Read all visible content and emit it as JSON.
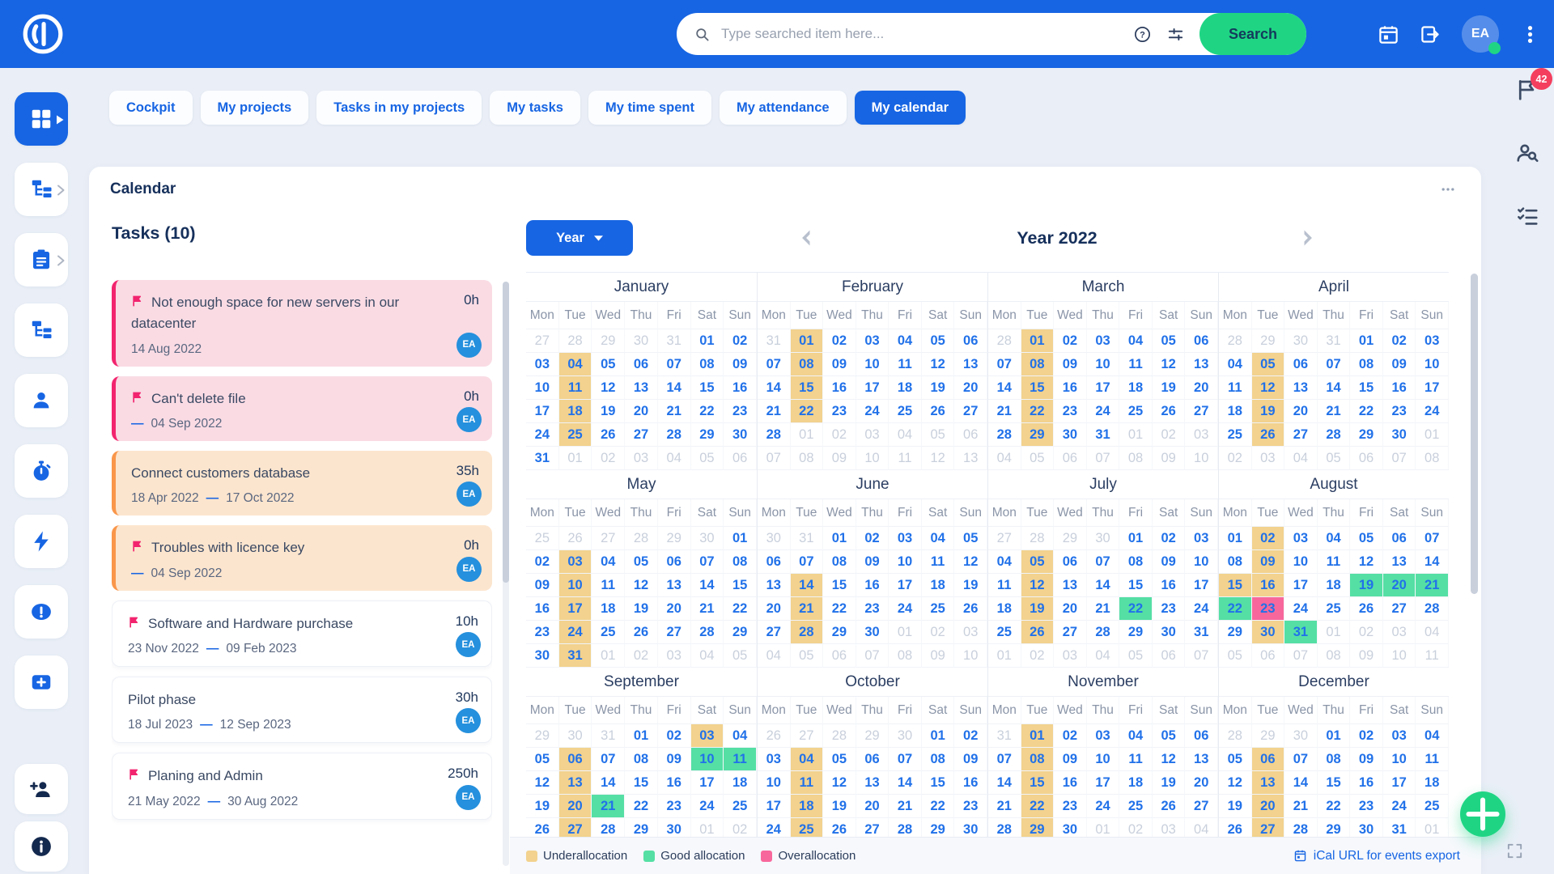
{
  "topbar": {
    "search_placeholder": "Type searched item here...",
    "search_button": "Search",
    "avatar_initials": "EA"
  },
  "tabs": [
    {
      "label": "Cockpit",
      "active": false
    },
    {
      "label": "My projects",
      "active": false
    },
    {
      "label": "Tasks in my projects",
      "active": false
    },
    {
      "label": "My tasks",
      "active": false
    },
    {
      "label": "My time spent",
      "active": false
    },
    {
      "label": "My attendance",
      "active": false
    },
    {
      "label": "My calendar",
      "active": true
    }
  ],
  "sidebar": {
    "items": [
      {
        "icon": "dashboard",
        "active": true
      },
      {
        "icon": "project-tree",
        "chevron": true
      },
      {
        "icon": "clipboard",
        "chevron": true
      },
      {
        "icon": "org-tree"
      },
      {
        "icon": "user"
      },
      {
        "icon": "stopwatch"
      },
      {
        "icon": "bolt"
      },
      {
        "icon": "alert"
      },
      {
        "icon": "plus-square"
      }
    ],
    "bottom": [
      {
        "icon": "user-add"
      },
      {
        "icon": "info"
      }
    ]
  },
  "rail": {
    "items": [
      {
        "icon": "flag",
        "badge": "42"
      },
      {
        "icon": "user-search"
      },
      {
        "icon": "checklist"
      }
    ]
  },
  "panel": {
    "title": "Calendar"
  },
  "tasks_panel": {
    "title": "Tasks (10)",
    "items": [
      {
        "title": "Not enough space for new servers in our datacenter",
        "flag": true,
        "style": "pink",
        "start": "14 Aug 2022",
        "end": "",
        "hours": "0h",
        "assignee": "EA"
      },
      {
        "title": "Can't delete file",
        "flag": true,
        "style": "pink",
        "start": "",
        "end": "04 Sep 2022",
        "hours": "0h",
        "assignee": "EA"
      },
      {
        "title": "Connect customers database",
        "flag": false,
        "style": "orange",
        "start": "18 Apr 2022",
        "end": "17 Oct 2022",
        "hours": "35h",
        "assignee": "EA"
      },
      {
        "title": "Troubles with licence key",
        "flag": true,
        "style": "orange",
        "start": "",
        "end": "04 Sep 2022",
        "hours": "0h",
        "assignee": "EA"
      },
      {
        "title": "Software and Hardware purchase",
        "flag": true,
        "style": "white",
        "start": "23 Nov 2022",
        "end": "09 Feb 2023",
        "hours": "10h",
        "assignee": "EA"
      },
      {
        "title": "Pilot phase",
        "flag": false,
        "style": "white",
        "start": "18 Jul 2023",
        "end": "12 Sep 2023",
        "hours": "30h",
        "assignee": "EA"
      },
      {
        "title": "Planing and Admin",
        "flag": true,
        "style": "white",
        "start": "21 May 2022",
        "end": "30 Aug 2022",
        "hours": "250h",
        "assignee": "EA"
      }
    ]
  },
  "calendar": {
    "selector_label": "Year",
    "title": "Year 2022",
    "dow": [
      "Mon",
      "Tue",
      "Wed",
      "Thu",
      "Fri",
      "Sat",
      "Sun"
    ],
    "months": [
      {
        "name": "January",
        "weeks": [
          [
            "27-",
            "28-",
            "29-",
            "30-",
            "31-",
            "01",
            "02"
          ],
          [
            "03",
            "04u",
            "05",
            "06",
            "07",
            "08",
            "09"
          ],
          [
            "10",
            "11u",
            "12",
            "13",
            "14",
            "15",
            "16"
          ],
          [
            "17",
            "18u",
            "19",
            "20",
            "21",
            "22",
            "23"
          ],
          [
            "24",
            "25u",
            "26",
            "27",
            "28",
            "29",
            "30"
          ],
          [
            "31",
            "01-",
            "02-",
            "03-",
            "04-",
            "05-",
            "06-"
          ]
        ]
      },
      {
        "name": "February",
        "weeks": [
          [
            "31-",
            "01u",
            "02",
            "03",
            "04",
            "05",
            "06"
          ],
          [
            "07",
            "08u",
            "09",
            "10",
            "11",
            "12",
            "13"
          ],
          [
            "14",
            "15u",
            "16",
            "17",
            "18",
            "19",
            "20"
          ],
          [
            "21",
            "22u",
            "23",
            "24",
            "25",
            "26",
            "27"
          ],
          [
            "28",
            "01-",
            "02-",
            "03-",
            "04-",
            "05-",
            "06-"
          ],
          [
            "07-",
            "08-",
            "09-",
            "10-",
            "11-",
            "12-",
            "13-"
          ]
        ]
      },
      {
        "name": "March",
        "weeks": [
          [
            "28-",
            "01u",
            "02",
            "03",
            "04",
            "05",
            "06"
          ],
          [
            "07",
            "08u",
            "09",
            "10",
            "11",
            "12",
            "13"
          ],
          [
            "14",
            "15u",
            "16",
            "17",
            "18",
            "19",
            "20"
          ],
          [
            "21",
            "22u",
            "23",
            "24",
            "25",
            "26",
            "27"
          ],
          [
            "28",
            "29u",
            "30",
            "31",
            "01-",
            "02-",
            "03-"
          ],
          [
            "04-",
            "05-",
            "06-",
            "07-",
            "08-",
            "09-",
            "10-"
          ]
        ]
      },
      {
        "name": "April",
        "weeks": [
          [
            "28-",
            "29-",
            "30-",
            "31-",
            "01",
            "02",
            "03"
          ],
          [
            "04",
            "05u",
            "06",
            "07",
            "08",
            "09",
            "10"
          ],
          [
            "11",
            "12u",
            "13",
            "14",
            "15",
            "16",
            "17"
          ],
          [
            "18",
            "19u",
            "20",
            "21",
            "22",
            "23",
            "24"
          ],
          [
            "25",
            "26u",
            "27",
            "28",
            "29",
            "30",
            "01-"
          ],
          [
            "02-",
            "03-",
            "04-",
            "05-",
            "06-",
            "07-",
            "08-"
          ]
        ]
      },
      {
        "name": "May",
        "weeks": [
          [
            "25-",
            "26-",
            "27-",
            "28-",
            "29-",
            "30-",
            "01"
          ],
          [
            "02",
            "03u",
            "04",
            "05",
            "06",
            "07",
            "08"
          ],
          [
            "09",
            "10u",
            "11",
            "12",
            "13",
            "14",
            "15"
          ],
          [
            "16",
            "17u",
            "18",
            "19",
            "20",
            "21",
            "22"
          ],
          [
            "23",
            "24u",
            "25",
            "26",
            "27",
            "28",
            "29"
          ],
          [
            "30",
            "31u",
            "01-",
            "02-",
            "03-",
            "04-",
            "05-"
          ]
        ]
      },
      {
        "name": "June",
        "weeks": [
          [
            "30-",
            "31-",
            "01",
            "02",
            "03",
            "04",
            "05"
          ],
          [
            "06",
            "07",
            "08",
            "09",
            "10",
            "11",
            "12"
          ],
          [
            "13",
            "14u",
            "15",
            "16",
            "17",
            "18",
            "19"
          ],
          [
            "20",
            "21u",
            "22",
            "23",
            "24",
            "25",
            "26"
          ],
          [
            "27",
            "28u",
            "29",
            "30",
            "01-",
            "02-",
            "03-"
          ],
          [
            "04-",
            "05-",
            "06-",
            "07-",
            "08-",
            "09-",
            "10-"
          ]
        ]
      },
      {
        "name": "July",
        "weeks": [
          [
            "27-",
            "28-",
            "29-",
            "30-",
            "01",
            "02",
            "03"
          ],
          [
            "04",
            "05u",
            "06",
            "07",
            "08",
            "09",
            "10"
          ],
          [
            "11",
            "12u",
            "13",
            "14",
            "15",
            "16",
            "17"
          ],
          [
            "18",
            "19u",
            "20",
            "21",
            "22g",
            "23",
            "24"
          ],
          [
            "25",
            "26u",
            "27",
            "28",
            "29",
            "30",
            "31"
          ],
          [
            "01-",
            "02-",
            "03-",
            "04-",
            "05-",
            "06-",
            "07-"
          ]
        ]
      },
      {
        "name": "August",
        "weeks": [
          [
            "01",
            "02u",
            "03",
            "04",
            "05",
            "06",
            "07"
          ],
          [
            "08",
            "09u",
            "10",
            "11",
            "12",
            "13",
            "14"
          ],
          [
            "15u",
            "16u",
            "17",
            "18",
            "19g",
            "20g",
            "21g"
          ],
          [
            "22g",
            "23o",
            "24",
            "25",
            "26",
            "27",
            "28"
          ],
          [
            "29",
            "30u",
            "31g",
            "01-",
            "02-",
            "03-",
            "04-"
          ],
          [
            "05-",
            "06-",
            "07-",
            "08-",
            "09-",
            "10-",
            "11-"
          ]
        ]
      },
      {
        "name": "September",
        "weeks": [
          [
            "29-",
            "30-",
            "31-",
            "01",
            "02",
            "03u",
            "04"
          ],
          [
            "05",
            "06u",
            "07",
            "08",
            "09",
            "10g",
            "11g"
          ],
          [
            "12",
            "13u",
            "14",
            "15",
            "16",
            "17",
            "18"
          ],
          [
            "19",
            "20u",
            "21g",
            "22",
            "23",
            "24",
            "25"
          ],
          [
            "26",
            "27u",
            "28",
            "29",
            "30",
            "01-",
            "02-"
          ]
        ]
      },
      {
        "name": "October",
        "weeks": [
          [
            "26-",
            "27-",
            "28-",
            "29-",
            "30-",
            "01",
            "02"
          ],
          [
            "03",
            "04u",
            "05",
            "06",
            "07",
            "08",
            "09"
          ],
          [
            "10",
            "11u",
            "12",
            "13",
            "14",
            "15",
            "16"
          ],
          [
            "17",
            "18u",
            "19",
            "20",
            "21",
            "22",
            "23"
          ],
          [
            "24",
            "25u",
            "26",
            "27",
            "28",
            "29",
            "30"
          ]
        ]
      },
      {
        "name": "November",
        "weeks": [
          [
            "31-",
            "01u",
            "02",
            "03",
            "04",
            "05",
            "06"
          ],
          [
            "07",
            "08u",
            "09",
            "10",
            "11",
            "12",
            "13"
          ],
          [
            "14",
            "15u",
            "16",
            "17",
            "18",
            "19",
            "20"
          ],
          [
            "21",
            "22u",
            "23",
            "24",
            "25",
            "26",
            "27"
          ],
          [
            "28",
            "29u",
            "30",
            "01-",
            "02-",
            "03-",
            "04-"
          ]
        ]
      },
      {
        "name": "December",
        "weeks": [
          [
            "28-",
            "29-",
            "30-",
            "01",
            "02",
            "03",
            "04"
          ],
          [
            "05",
            "06u",
            "07",
            "08",
            "09",
            "10",
            "11"
          ],
          [
            "12",
            "13u",
            "14",
            "15",
            "16",
            "17",
            "18"
          ],
          [
            "19",
            "20u",
            "21",
            "22",
            "23",
            "24",
            "25"
          ],
          [
            "26",
            "27u",
            "28",
            "29",
            "30",
            "31",
            "01-"
          ]
        ]
      }
    ]
  },
  "legend": [
    {
      "label": "Underallocation",
      "color": "#F2D28E"
    },
    {
      "label": "Good allocation",
      "color": "#55DFA4"
    },
    {
      "label": "Overallocation",
      "color": "#F8679B"
    }
  ],
  "footer": {
    "ical_label": "iCal URL for events export"
  },
  "colors": {
    "accent": "#1765E3",
    "topbar": "#1765E3",
    "search-green": "#1FD584",
    "underallocation": "#F2D28E",
    "good-allocation": "#55DFA4",
    "overallocation": "#F8679B",
    "flag-pink": "#F2246E",
    "card-pink-bg": "#FADBE4",
    "card-pink-border": "#F2246E",
    "card-orange-bg": "#FCE5CE",
    "card-orange-border": "#F9964A",
    "avatar-blue": "#2590DD",
    "navy": "#16305B",
    "badge-red": "#F43F5E"
  }
}
